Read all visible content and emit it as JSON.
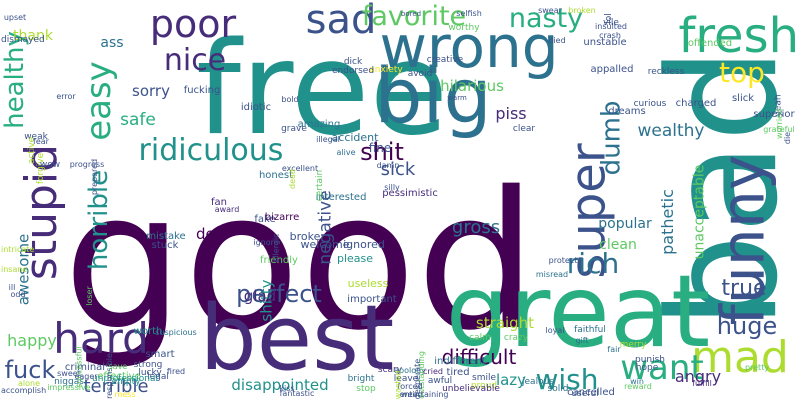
{
  "background": "#ffffff",
  "palette": {
    "deep_purple": "#440154",
    "indigo": "#472c7a",
    "blue": "#3b528b",
    "slate": "#2c728e",
    "teal": "#21918c",
    "green_teal": "#28ae80",
    "green": "#5ec962",
    "lime": "#addc30",
    "yellow": "#fde725"
  },
  "words": [
    {
      "text": "good",
      "orientation": "horizontal",
      "color": "#440154"
    },
    {
      "text": "free",
      "orientation": "horizontal",
      "color": "#21918c"
    },
    {
      "text": "best",
      "orientation": "horizontal",
      "color": "#472c7a"
    },
    {
      "text": "bad",
      "orientation": "vertical",
      "color": "#21918c"
    },
    {
      "text": "great",
      "orientation": "horizontal",
      "color": "#28ae80"
    },
    {
      "text": "big",
      "orientation": "horizontal",
      "color": "#2c728e"
    },
    {
      "text": "wrong",
      "orientation": "horizontal",
      "color": "#2c728e"
    },
    {
      "text": "funny",
      "orientation": "vertical",
      "color": "#3b528b"
    },
    {
      "text": "fresh",
      "orientation": "horizontal",
      "color": "#28ae80"
    },
    {
      "text": "super",
      "orientation": "vertical",
      "color": "#3b528b"
    },
    {
      "text": "sad",
      "orientation": "horizontal",
      "color": "#3b528b"
    },
    {
      "text": "poor",
      "orientation": "horizontal",
      "color": "#472c7a"
    },
    {
      "text": "stupid",
      "orientation": "vertical",
      "color": "#472c7a"
    },
    {
      "text": "hard",
      "orientation": "horizontal",
      "color": "#472c7a"
    },
    {
      "text": "mad",
      "orientation": "horizontal",
      "color": "#addc30"
    },
    {
      "text": "ridiculous",
      "orientation": "horizontal",
      "color": "#21918c"
    },
    {
      "text": "easy",
      "orientation": "vertical",
      "color": "#28ae80"
    },
    {
      "text": "healthy",
      "orientation": "vertical",
      "color": "#28ae80"
    },
    {
      "text": "favorite",
      "orientation": "horizontal",
      "color": "#5ec962"
    },
    {
      "text": "nasty",
      "orientation": "horizontal",
      "color": "#28ae80"
    },
    {
      "text": "nice",
      "orientation": "horizontal",
      "color": "#472c7a"
    },
    {
      "text": "shit",
      "orientation": "horizontal",
      "color": "#440154"
    },
    {
      "text": "top",
      "orientation": "horizontal",
      "color": "#fde725"
    },
    {
      "text": "want",
      "orientation": "horizontal",
      "color": "#28ae80"
    },
    {
      "text": "rich",
      "orientation": "horizontal",
      "color": "#2c728e"
    },
    {
      "text": "dumb",
      "orientation": "vertical",
      "color": "#2c728e"
    },
    {
      "text": "wish",
      "orientation": "horizontal",
      "color": "#21918c"
    },
    {
      "text": "huge",
      "orientation": "horizontal",
      "color": "#3b528b"
    },
    {
      "text": "true",
      "orientation": "horizontal",
      "color": "#3b528b"
    },
    {
      "text": "fuck",
      "orientation": "horizontal",
      "color": "#3b528b"
    },
    {
      "text": "horrible",
      "orientation": "vertical",
      "color": "#21918c"
    },
    {
      "text": "perfect",
      "orientation": "horizontal",
      "color": "#3b528b"
    },
    {
      "text": "hilarious",
      "orientation": "horizontal",
      "color": "#5ec962"
    },
    {
      "text": "sorry",
      "orientation": "horizontal",
      "color": "#3b528b"
    },
    {
      "text": "safe",
      "orientation": "horizontal",
      "color": "#28ae80"
    },
    {
      "text": "sick",
      "orientation": "horizontal",
      "color": "#3b528b"
    },
    {
      "text": "difficult",
      "orientation": "horizontal",
      "color": "#440154"
    },
    {
      "text": "terrible",
      "orientation": "horizontal",
      "color": "#3b528b"
    },
    {
      "text": "happy",
      "orientation": "horizontal",
      "color": "#5ec962"
    },
    {
      "text": "awesome",
      "orientation": "vertical",
      "color": "#2c728e"
    },
    {
      "text": "disappointed",
      "orientation": "horizontal",
      "color": "#21918c"
    },
    {
      "text": "straight",
      "orientation": "horizontal",
      "color": "#addc30"
    },
    {
      "text": "lazy",
      "orientation": "horizontal",
      "color": "#21918c"
    },
    {
      "text": "negative",
      "orientation": "vertical",
      "color": "#3b528b"
    },
    {
      "text": "wealthy",
      "orientation": "horizontal",
      "color": "#2c728e"
    },
    {
      "text": "pathetic",
      "orientation": "vertical",
      "color": "#2c728e"
    },
    {
      "text": "unacceptable",
      "orientation": "vertical",
      "color": "#5ec962"
    },
    {
      "text": "angry",
      "orientation": "horizontal",
      "color": "#472c7a"
    },
    {
      "text": "popular",
      "orientation": "horizontal",
      "color": "#2c728e"
    },
    {
      "text": "clean",
      "orientation": "horizontal",
      "color": "#5ec962"
    },
    {
      "text": "gross",
      "orientation": "horizontal",
      "color": "#2c728e"
    },
    {
      "text": "dear",
      "orientation": "horizontal",
      "color": "#440154"
    },
    {
      "text": "shitty",
      "orientation": "vertical",
      "color": "#21918c"
    },
    {
      "text": "glad",
      "orientation": "horizontal",
      "color": "#472c7a"
    },
    {
      "text": "piss",
      "orientation": "horizontal",
      "color": "#472c7a"
    },
    {
      "text": "fine",
      "orientation": "horizontal",
      "color": "#3b528b"
    },
    {
      "text": "ass",
      "orientation": "horizontal",
      "color": "#2c728e"
    },
    {
      "text": "thank",
      "orientation": "horizontal",
      "color": "#addc30"
    },
    {
      "text": "welcome",
      "orientation": "horizontal",
      "color": "#3b528b"
    },
    {
      "text": "friendly",
      "orientation": "horizontal",
      "color": "#5ec962"
    },
    {
      "text": "fake",
      "orientation": "horizontal",
      "color": "#3b528b"
    },
    {
      "text": "ignored",
      "orientation": "horizontal",
      "color": "#3b528b"
    },
    {
      "text": "please",
      "orientation": "horizontal",
      "color": "#21918c"
    },
    {
      "text": "useless",
      "orientation": "horizontal",
      "color": "#addc30"
    },
    {
      "text": "important",
      "orientation": "horizontal",
      "color": "#3b528b"
    },
    {
      "text": "broke",
      "orientation": "horizontal",
      "color": "#3b528b"
    },
    {
      "text": "accident",
      "orientation": "horizontal",
      "color": "#2c728e"
    },
    {
      "text": "idiotic",
      "orientation": "horizontal",
      "color": "#3b528b"
    },
    {
      "text": "amazing",
      "orientation": "horizontal",
      "color": "#2c728e"
    },
    {
      "text": "interested",
      "orientation": "horizontal",
      "color": "#2c728e"
    },
    {
      "text": "bizarre",
      "orientation": "horizontal",
      "color": "#440154"
    },
    {
      "text": "honest",
      "orientation": "horizontal",
      "color": "#2c728e"
    },
    {
      "text": "pessimistic",
      "orientation": "horizontal",
      "color": "#472c7a"
    },
    {
      "text": "excellent",
      "orientation": "horizontal",
      "color": "#3b528b"
    },
    {
      "text": "fan",
      "orientation": "horizontal",
      "color": "#472c7a"
    },
    {
      "text": "award",
      "orientation": "horizontal",
      "color": "#472c7a"
    },
    {
      "text": "mistake",
      "orientation": "horizontal",
      "color": "#2c728e"
    },
    {
      "text": "stuck",
      "orientation": "horizontal",
      "color": "#3b528b"
    },
    {
      "text": "worth",
      "orientation": "horizontal",
      "color": "#21918c"
    },
    {
      "text": "smart",
      "orientation": "horizontal",
      "color": "#3b528b"
    },
    {
      "text": "suspicious",
      "orientation": "horizontal",
      "color": "#2c728e"
    },
    {
      "text": "strong",
      "orientation": "horizontal",
      "color": "#3b528b"
    },
    {
      "text": "effective",
      "orientation": "horizontal",
      "color": "#5ec962"
    },
    {
      "text": "empty",
      "orientation": "horizontal",
      "color": "#21918c"
    },
    {
      "text": "criminal",
      "orientation": "horizontal",
      "color": "#3b528b"
    },
    {
      "text": "lucky",
      "orientation": "horizontal",
      "color": "#3b528b"
    },
    {
      "text": "legal",
      "orientation": "horizontal",
      "color": "#3b528b"
    },
    {
      "text": "sweet",
      "orientation": "horizontal",
      "color": "#3b528b"
    },
    {
      "text": "niggas",
      "orientation": "horizontal",
      "color": "#2c728e"
    },
    {
      "text": "unprofessional",
      "orientation": "horizontal",
      "color": "#21918c"
    },
    {
      "text": "impressive",
      "orientation": "horizontal",
      "color": "#5ec962"
    },
    {
      "text": "tired",
      "orientation": "horizontal",
      "color": "#3b528b"
    },
    {
      "text": "indifferent",
      "orientation": "horizontal",
      "color": "#2c728e"
    },
    {
      "text": "smile",
      "orientation": "horizontal",
      "color": "#3b528b"
    },
    {
      "text": "proud",
      "orientation": "horizontal",
      "color": "#addc30"
    },
    {
      "text": "calm",
      "orientation": "horizontal",
      "color": "#5ec962"
    },
    {
      "text": "scary",
      "orientation": "horizontal",
      "color": "#472c7a"
    },
    {
      "text": "apology",
      "orientation": "horizontal",
      "color": "#2c728e"
    },
    {
      "text": "bright",
      "orientation": "horizontal",
      "color": "#2c728e"
    },
    {
      "text": "stop",
      "orientation": "horizontal",
      "color": "#5ec962"
    },
    {
      "text": "cried",
      "orientation": "horizontal",
      "color": "#472c7a"
    },
    {
      "text": "awful",
      "orientation": "horizontal",
      "color": "#3b528b"
    },
    {
      "text": "unbelievable",
      "orientation": "horizontal",
      "color": "#472c7a"
    },
    {
      "text": "solid",
      "orientation": "horizontal",
      "color": "#2c728e"
    },
    {
      "text": "useful",
      "orientation": "horizontal",
      "color": "#3b528b"
    },
    {
      "text": "jealous",
      "orientation": "horizontal",
      "color": "#2c728e"
    },
    {
      "text": "cancelled",
      "orientation": "horizontal",
      "color": "#3b528b"
    },
    {
      "text": "pretty",
      "orientation": "horizontal",
      "color": "#5ec962"
    },
    {
      "text": "fulfill",
      "orientation": "horizontal",
      "color": "#472c7a"
    },
    {
      "text": "reward",
      "orientation": "horizontal",
      "color": "#5ec962"
    },
    {
      "text": "win",
      "orientation": "horizontal",
      "color": "#2c728e"
    },
    {
      "text": "punish",
      "orientation": "horizontal",
      "color": "#3b528b"
    },
    {
      "text": "hope",
      "orientation": "horizontal",
      "color": "#3b528b"
    },
    {
      "text": "fair",
      "orientation": "horizontal",
      "color": "#2c728e"
    },
    {
      "text": "merry",
      "orientation": "horizontal",
      "color": "#addc30"
    },
    {
      "text": "faithful",
      "orientation": "horizontal",
      "color": "#2c728e"
    },
    {
      "text": "gift",
      "orientation": "horizontal",
      "color": "#2c728e"
    },
    {
      "text": "loyal",
      "orientation": "horizontal",
      "color": "#3b528b"
    },
    {
      "text": "protect",
      "orientation": "horizontal",
      "color": "#3b528b"
    },
    {
      "text": "misread",
      "orientation": "horizontal",
      "color": "#2c728e"
    },
    {
      "text": "crazy",
      "orientation": "horizontal",
      "color": "#5ec962"
    },
    {
      "text": "yeah",
      "orientation": "vertical",
      "color": "#3b528b"
    },
    {
      "text": "superior",
      "orientation": "horizontal",
      "color": "#3b528b"
    },
    {
      "text": "grateful",
      "orientation": "horizontal",
      "color": "#5ec962"
    },
    {
      "text": "die",
      "orientation": "vertical",
      "color": "#3b528b"
    },
    {
      "text": "worried",
      "orientation": "vertical",
      "color": "#5ec962"
    },
    {
      "text": "offended",
      "orientation": "horizontal",
      "color": "#5ec962"
    },
    {
      "text": "reckless",
      "orientation": "horizontal",
      "color": "#3b528b"
    },
    {
      "text": "slick",
      "orientation": "horizontal",
      "color": "#3b528b"
    },
    {
      "text": "charged",
      "orientation": "horizontal",
      "color": "#3b528b"
    },
    {
      "text": "curious",
      "orientation": "horizontal",
      "color": "#3b528b"
    },
    {
      "text": "dreams",
      "orientation": "horizontal",
      "color": "#3b528b"
    },
    {
      "text": "appalled",
      "orientation": "horizontal",
      "color": "#3b528b"
    },
    {
      "text": "unstable",
      "orientation": "horizontal",
      "color": "#3b528b"
    },
    {
      "text": "vile",
      "orientation": "horizontal",
      "color": "#3b528b"
    },
    {
      "text": "insulted",
      "orientation": "horizontal",
      "color": "#3b528b"
    },
    {
      "text": "lol",
      "orientation": "vertical",
      "color": "#3b528b"
    },
    {
      "text": "broken",
      "orientation": "horizontal",
      "color": "#addc30"
    },
    {
      "text": "crash",
      "orientation": "horizontal",
      "color": "#3b528b"
    },
    {
      "text": "died",
      "orientation": "horizontal",
      "color": "#3b528b"
    },
    {
      "text": "swear",
      "orientation": "horizontal",
      "color": "#3b528b"
    },
    {
      "text": "bored",
      "orientation": "horizontal",
      "color": "#3b528b"
    },
    {
      "text": "worthy",
      "orientation": "horizontal",
      "color": "#5ec962"
    },
    {
      "text": "selfish",
      "orientation": "horizontal",
      "color": "#3b528b"
    },
    {
      "text": "creative",
      "orientation": "horizontal",
      "color": "#3b528b"
    },
    {
      "text": "avoid",
      "orientation": "horizontal",
      "color": "#3b528b"
    },
    {
      "text": "anxiety",
      "orientation": "horizontal",
      "color": "#fde725"
    },
    {
      "text": "dick",
      "orientation": "horizontal",
      "color": "#3b528b"
    },
    {
      "text": "endorsed",
      "orientation": "horizontal",
      "color": "#3b528b"
    },
    {
      "text": "upset",
      "orientation": "horizontal",
      "color": "#3b528b"
    },
    {
      "text": "dismayed",
      "orientation": "horizontal",
      "color": "#3b528b"
    },
    {
      "text": "error",
      "orientation": "horizontal",
      "color": "#3b528b"
    },
    {
      "text": "fucking",
      "orientation": "horizontal",
      "color": "#3b528b"
    },
    {
      "text": "bold",
      "orientation": "horizontal",
      "color": "#3b528b"
    },
    {
      "text": "grave",
      "orientation": "horizontal",
      "color": "#3b528b"
    },
    {
      "text": "illegal",
      "orientation": "horizontal",
      "color": "#3b528b"
    },
    {
      "text": "alive",
      "orientation": "horizontal",
      "color": "#2c728e"
    },
    {
      "text": "damn",
      "orientation": "horizontal",
      "color": "#3b528b"
    },
    {
      "text": "silly",
      "orientation": "horizontal",
      "color": "#3b528b"
    },
    {
      "text": "warm",
      "orientation": "horizontal",
      "color": "#3b528b"
    },
    {
      "text": "clear",
      "orientation": "horizontal",
      "color": "#3b528b"
    },
    {
      "text": "weak",
      "orientation": "horizontal",
      "color": "#3b528b"
    },
    {
      "text": "active",
      "orientation": "vertical",
      "color": "#addc30"
    },
    {
      "text": "forgive",
      "orientation": "vertical",
      "color": "#addc30"
    },
    {
      "text": "fear",
      "orientation": "horizontal",
      "color": "#3b528b"
    },
    {
      "text": "wow",
      "orientation": "horizontal",
      "color": "#3b528b"
    },
    {
      "text": "progress",
      "orientation": "horizontal",
      "color": "#3b528b"
    },
    {
      "text": "prepared",
      "orientation": "vertical",
      "color": "#3b528b"
    },
    {
      "text": "dead",
      "orientation": "vertical",
      "color": "#addc30"
    },
    {
      "text": "certain",
      "orientation": "vertical",
      "color": "#5ec962"
    },
    {
      "text": "allergic",
      "orientation": "vertical",
      "color": "#3b528b"
    },
    {
      "text": "ignore",
      "orientation": "horizontal",
      "color": "#3b528b"
    },
    {
      "text": "intricate",
      "orientation": "horizontal",
      "color": "#addc30"
    },
    {
      "text": "insane",
      "orientation": "horizontal",
      "color": "#addc30"
    },
    {
      "text": "ill",
      "orientation": "horizontal",
      "color": "#3b528b"
    },
    {
      "text": "odd",
      "orientation": "horizontal",
      "color": "#3b528b"
    },
    {
      "text": "loser",
      "orientation": "vertical",
      "color": "#5ec962"
    },
    {
      "text": "successful",
      "orientation": "vertical",
      "color": "#5ec962"
    },
    {
      "text": "eager",
      "orientation": "horizontal",
      "color": "#3b528b"
    },
    {
      "text": "responsible",
      "orientation": "vertical",
      "color": "#3b528b"
    },
    {
      "text": "save",
      "orientation": "horizontal",
      "color": "#5ec962"
    },
    {
      "text": "mess",
      "orientation": "horizontal",
      "color": "#fde725"
    },
    {
      "text": "fired",
      "orientation": "horizontal",
      "color": "#3b528b"
    },
    {
      "text": "kiss",
      "orientation": "horizontal",
      "color": "#3b528b"
    },
    {
      "text": "fantastic",
      "orientation": "horizontal",
      "color": "#3b528b"
    },
    {
      "text": "leave",
      "orientation": "horizontal",
      "color": "#3b528b"
    },
    {
      "text": "outstanding",
      "orientation": "vertical",
      "color": "#5ec962"
    },
    {
      "text": "forced",
      "orientation": "horizontal",
      "color": "#3b528b"
    },
    {
      "text": "desperate",
      "orientation": "vertical",
      "color": "#3b528b"
    },
    {
      "text": "entertaining",
      "orientation": "horizontal",
      "color": "#3b528b"
    },
    {
      "text": "wasted",
      "orientation": "vertical",
      "color": "#addc30"
    },
    {
      "text": "weird",
      "orientation": "horizontal",
      "color": "#3b528b"
    },
    {
      "text": "alone",
      "orientation": "horizontal",
      "color": "#addc30"
    },
    {
      "text": "accomplish",
      "orientation": "horizontal",
      "color": "#3b528b"
    },
    {
      "text": "distract",
      "orientation": "horizontal",
      "color": "#addc30"
    },
    {
      "text": "chic",
      "orientation": "horizontal",
      "color": "#3b528b"
    },
    {
      "text": "rainy",
      "orientation": "horizontal",
      "color": "#5ec962"
    },
    {
      "text": "trust",
      "orientation": "horizontal",
      "color": "#5ec962"
    },
    {
      "text": "slut",
      "orientation": "horizontal",
      "color": "#3b528b"
    },
    {
      "text": "alarm",
      "orientation": "horizontal",
      "color": "#3b528b"
    }
  ]
}
